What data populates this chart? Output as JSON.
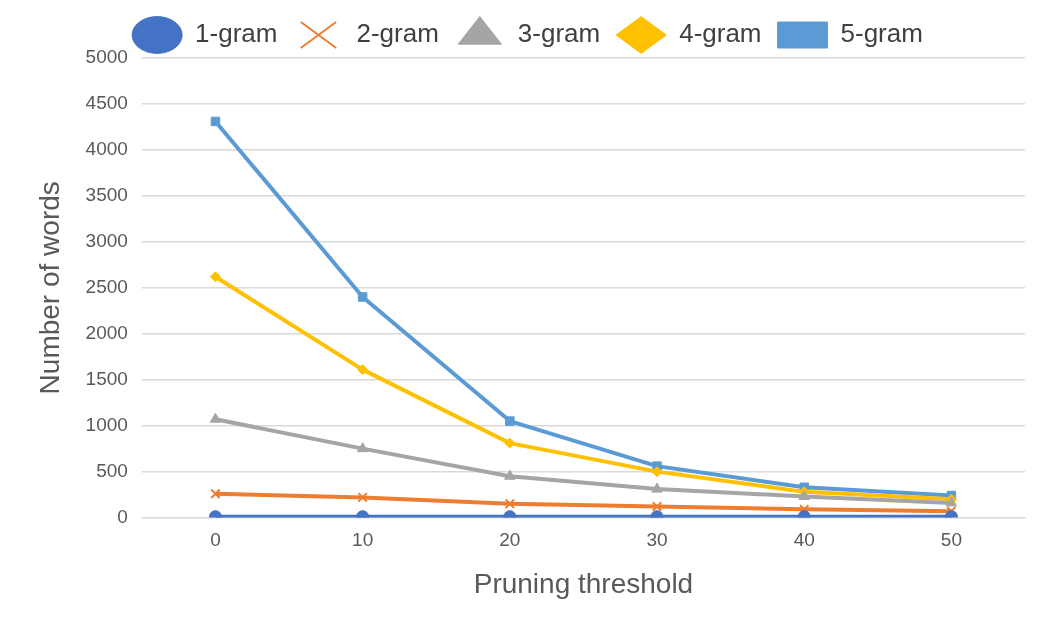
{
  "chart_data": {
    "type": "line",
    "xlabel": "Pruning threshold",
    "ylabel": "Number of words",
    "categories": [
      "0",
      "10",
      "20",
      "30",
      "40",
      "50"
    ],
    "series": [
      {
        "name": "1-gram",
        "color": "#4472c4",
        "marker": "circle",
        "values": [
          10,
          10,
          10,
          10,
          10,
          10
        ]
      },
      {
        "name": "2-gram",
        "color": "#ed7d31",
        "marker": "cross",
        "values": [
          260,
          220,
          150,
          120,
          90,
          70
        ]
      },
      {
        "name": "3-gram",
        "color": "#a5a5a5",
        "marker": "triangle",
        "values": [
          1070,
          750,
          450,
          310,
          230,
          160
        ]
      },
      {
        "name": "4-gram",
        "color": "#ffc000",
        "marker": "diamond",
        "values": [
          2620,
          1610,
          810,
          500,
          280,
          200
        ]
      },
      {
        "name": "5-gram",
        "color": "#5b9bd5",
        "marker": "square",
        "values": [
          4310,
          2400,
          1050,
          560,
          330,
          240
        ]
      }
    ],
    "ylim": [
      0,
      5000
    ],
    "yticks": [
      0,
      500,
      1000,
      1500,
      2000,
      2500,
      3000,
      3500,
      4000,
      4500,
      5000
    ],
    "grid": "y",
    "legend": "top"
  }
}
